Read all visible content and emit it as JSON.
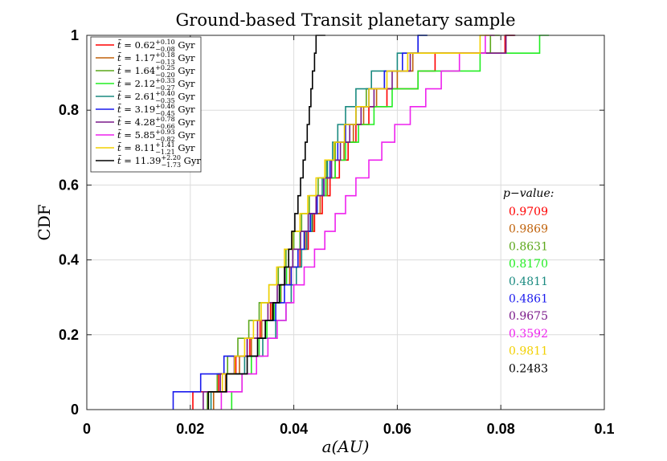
{
  "chart_data": {
    "type": "line",
    "subtype": "step-cdf",
    "title": "Ground-based Transit planetary sample",
    "xlabel": "a(AU)",
    "ylabel": "CDF",
    "xlim": [
      0,
      0.1
    ],
    "ylim": [
      0,
      1
    ],
    "xticks": [
      "0",
      "0.02",
      "0.04",
      "0.06",
      "0.08",
      "0.1"
    ],
    "yticks": [
      "0",
      "0.2",
      "0.4",
      "0.6",
      "0.8",
      "1"
    ],
    "grid": true,
    "legend_position": "top-left",
    "pvalue_label": "p−value:",
    "series": [
      {
        "name": "t̄ = 0.62+0.10−0.08 Gyr",
        "age": "0.62",
        "err_plus": "+0.10",
        "err_minus": "−0.08",
        "color": "#ff0000",
        "pvalue": "0.9709",
        "x": [
          0.0205,
          0.0255,
          0.0288,
          0.0315,
          0.0335,
          0.0355,
          0.0375,
          0.0395,
          0.0412,
          0.0428,
          0.044,
          0.0455,
          0.047,
          0.0488,
          0.0505,
          0.052,
          0.0545,
          0.058,
          0.064,
          0.0673,
          0.0808
        ]
      },
      {
        "name": "t̄ = 1.17+0.18−0.13 Gyr",
        "age": "1.17",
        "err_plus": "+0.18",
        "err_minus": "−0.13",
        "color": "#c0620a",
        "pvalue": "0.9869",
        "x": [
          0.0245,
          0.0268,
          0.0295,
          0.0318,
          0.0338,
          0.0358,
          0.0375,
          0.0392,
          0.0408,
          0.0422,
          0.0437,
          0.0451,
          0.0465,
          0.048,
          0.0497,
          0.0515,
          0.0535,
          0.056,
          0.06,
          0.063,
          0.081
        ]
      },
      {
        "name": "t̄ = 1.64+0.25−0.20 Gyr",
        "age": "1.64",
        "err_plus": "+0.25",
        "err_minus": "−0.20",
        "color": "#5ca71a",
        "pvalue": "0.8631",
        "x": [
          0.0233,
          0.0252,
          0.0272,
          0.0292,
          0.0313,
          0.0333,
          0.0352,
          0.037,
          0.0385,
          0.04,
          0.0415,
          0.043,
          0.0447,
          0.0463,
          0.048,
          0.0498,
          0.052,
          0.054,
          0.0575,
          0.062,
          0.078
        ]
      },
      {
        "name": "t̄ = 2.12+0.33−0.27 Gyr",
        "age": "2.12",
        "err_plus": "+0.33",
        "err_minus": "−0.27",
        "color": "#22ee22",
        "pvalue": "0.8170",
        "x": [
          0.028,
          0.03,
          0.0318,
          0.0333,
          0.0348,
          0.0362,
          0.0374,
          0.0386,
          0.0398,
          0.0412,
          0.0428,
          0.0445,
          0.0462,
          0.048,
          0.05,
          0.0525,
          0.0555,
          0.059,
          0.064,
          0.076,
          0.0875
        ]
      },
      {
        "name": "t̄ = 2.61+0.40−0.35 Gyr",
        "age": "2.61",
        "err_plus": "+0.40",
        "err_minus": "−0.35",
        "color": "#1a8a80",
        "pvalue": "0.4811",
        "x": [
          0.024,
          0.027,
          0.0305,
          0.034,
          0.0365,
          0.0385,
          0.0395,
          0.0405,
          0.0415,
          0.0425,
          0.0435,
          0.0445,
          0.0455,
          0.0465,
          0.0475,
          0.0485,
          0.05,
          0.052,
          0.055,
          0.06,
          0.064
        ]
      },
      {
        "name": "t̄ = 3.19+0.46−0.45 Gyr",
        "age": "3.19",
        "err_plus": "+0.46",
        "err_minus": "−0.45",
        "color": "#1a1aee",
        "pvalue": "0.4861",
        "x": [
          0.0167,
          0.022,
          0.0265,
          0.031,
          0.0345,
          0.0365,
          0.0382,
          0.0395,
          0.0408,
          0.042,
          0.0432,
          0.0445,
          0.0458,
          0.047,
          0.0485,
          0.05,
          0.052,
          0.0545,
          0.0575,
          0.061,
          0.064
        ]
      },
      {
        "name": "t̄ = 4.28+0.78−0.66 Gyr",
        "age": "4.28",
        "err_plus": "+0.78",
        "err_minus": "−0.66",
        "color": "#7a1a8a",
        "pvalue": "0.9675",
        "x": [
          0.0225,
          0.0258,
          0.0285,
          0.031,
          0.033,
          0.035,
          0.0368,
          0.0383,
          0.0398,
          0.0413,
          0.0428,
          0.0443,
          0.0458,
          0.0473,
          0.049,
          0.0508,
          0.053,
          0.0555,
          0.059,
          0.0625,
          0.081
        ]
      },
      {
        "name": "t̄ = 5.85+0.93−0.82 Gyr",
        "age": "5.85",
        "err_plus": "+0.93",
        "err_minus": "−0.82",
        "color": "#ee22ee",
        "pvalue": "0.3592",
        "x": [
          0.026,
          0.03,
          0.0328,
          0.035,
          0.0368,
          0.0385,
          0.04,
          0.042,
          0.044,
          0.046,
          0.048,
          0.05,
          0.052,
          0.0545,
          0.057,
          0.0595,
          0.0625,
          0.0655,
          0.0685,
          0.072,
          0.077
        ]
      },
      {
        "name": "t̄ = 8.11+1.41−1.21 Gyr",
        "age": "8.11",
        "err_plus": "+1.41",
        "err_minus": "−1.21",
        "color": "#f2d000",
        "pvalue": "0.9811",
        "x": [
          0.0235,
          0.0262,
          0.0286,
          0.0305,
          0.0322,
          0.0337,
          0.0352,
          0.0367,
          0.0382,
          0.0397,
          0.0412,
          0.0427,
          0.0443,
          0.046,
          0.0478,
          0.0498,
          0.052,
          0.0545,
          0.058,
          0.062,
          0.076
        ]
      },
      {
        "name": "t̄ = 11.39+2.20−1.73 Gyr",
        "age": "11.39",
        "err_plus": "+2.20",
        "err_minus": "−1.73",
        "color": "#000000",
        "pvalue": "0.2483",
        "x": [
          0.0235,
          0.027,
          0.031,
          0.033,
          0.0345,
          0.036,
          0.0372,
          0.0382,
          0.039,
          0.0396,
          0.0402,
          0.0408,
          0.0413,
          0.0418,
          0.0422,
          0.0426,
          0.043,
          0.0433,
          0.0436,
          0.044,
          0.0443
        ]
      }
    ]
  }
}
